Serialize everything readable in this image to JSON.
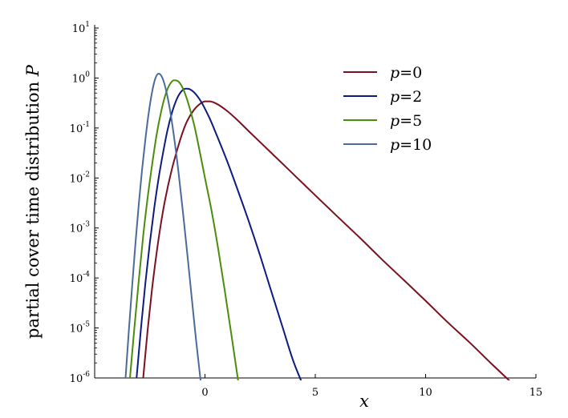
{
  "chart_data": {
    "type": "line",
    "xlabel": "x",
    "ylabel": "partial cover time distribution P",
    "ylabel_prefix": "partial cover time distribution ",
    "ylabel_var": "P",
    "xlim": [
      -5,
      15
    ],
    "ylim": [
      1e-06,
      10
    ],
    "y_scale": "log",
    "grid": false,
    "legend_position": "top-right",
    "x_ticks": [
      0,
      5,
      10,
      15
    ],
    "y_ticks": [
      {
        "base": "10",
        "exp": "1",
        "value": 10
      },
      {
        "base": "10",
        "exp": "0",
        "value": 1
      },
      {
        "base": "10",
        "exp": "-1",
        "value": 0.1
      },
      {
        "base": "10",
        "exp": "-2",
        "value": 0.01
      },
      {
        "base": "10",
        "exp": "-3",
        "value": 0.001
      },
      {
        "base": "10",
        "exp": "-4",
        "value": 0.0001
      },
      {
        "base": "10",
        "exp": "-5",
        "value": 1e-05
      },
      {
        "base": "10",
        "exp": "-6",
        "value": 1e-06
      }
    ],
    "series": [
      {
        "name": "p=0",
        "var": "p",
        "eq": "=0",
        "color": "#7b1020",
        "x": [
          -2.8,
          -2.6,
          -2.4,
          -2.2,
          -2.0,
          -1.8,
          -1.5,
          -1.2,
          -1.0,
          -0.8,
          -0.5,
          -0.2,
          0.0,
          0.2,
          0.5,
          1.0,
          1.5,
          2.0,
          3.0,
          4.0,
          5.0,
          6.0,
          7.0,
          8.0,
          9.0,
          10.0,
          11.0,
          12.0,
          13.0,
          13.9
        ],
        "y": [
          1e-06,
          9e-06,
          6e-05,
          0.0003,
          0.0012,
          0.0038,
          0.015,
          0.045,
          0.085,
          0.14,
          0.23,
          0.31,
          0.34,
          0.34,
          0.31,
          0.22,
          0.14,
          0.085,
          0.032,
          0.012,
          0.0045,
          0.0017,
          0.00065,
          0.00024,
          9.2e-05,
          3.5e-05,
          1.3e-05,
          5.1e-06,
          1.9e-06,
          8e-07
        ]
      },
      {
        "name": "p=2",
        "var": "p",
        "eq": "=2",
        "color": "#0d1a80",
        "x": [
          -3.1,
          -2.9,
          -2.7,
          -2.5,
          -2.3,
          -2.1,
          -1.9,
          -1.7,
          -1.5,
          -1.3,
          -1.1,
          -0.9,
          -0.7,
          -0.5,
          -0.2,
          0.2,
          0.5,
          1.0,
          1.5,
          2.0,
          2.5,
          3.0,
          3.5,
          4.0,
          4.45
        ],
        "y": [
          1e-06,
          1e-05,
          8e-05,
          0.0005,
          0.0025,
          0.01,
          0.032,
          0.09,
          0.2,
          0.36,
          0.52,
          0.61,
          0.6,
          0.52,
          0.35,
          0.16,
          0.078,
          0.022,
          0.0055,
          0.0013,
          0.00028,
          5.5e-05,
          1.1e-05,
          2.2e-06,
          7e-07
        ]
      },
      {
        "name": "p=5",
        "var": "p",
        "eq": "=5",
        "color": "#4a8c0c",
        "x": [
          -3.4,
          -3.2,
          -3.0,
          -2.8,
          -2.6,
          -2.4,
          -2.2,
          -2.0,
          -1.8,
          -1.6,
          -1.4,
          -1.2,
          -1.0,
          -0.8,
          -0.5,
          -0.2,
          0.0,
          0.3,
          0.6,
          0.9,
          1.2,
          1.5,
          1.65
        ],
        "y": [
          1e-06,
          1e-05,
          9e-05,
          0.0007,
          0.004,
          0.018,
          0.07,
          0.2,
          0.45,
          0.74,
          0.9,
          0.85,
          0.62,
          0.36,
          0.12,
          0.028,
          0.01,
          0.0022,
          0.00038,
          5.5e-05,
          7.2e-06,
          9e-07,
          3e-07
        ]
      },
      {
        "name": "p=10",
        "var": "p",
        "eq": "=10",
        "color": "#4a6b9c",
        "x": [
          -3.6,
          -3.45,
          -3.3,
          -3.15,
          -3.0,
          -2.85,
          -2.7,
          -2.55,
          -2.4,
          -2.25,
          -2.1,
          -1.95,
          -1.8,
          -1.6,
          -1.4,
          -1.2,
          -1.0,
          -0.8,
          -0.6,
          -0.4,
          -0.2,
          -0.1
        ],
        "y": [
          1e-06,
          9e-06,
          7e-05,
          0.0005,
          0.003,
          0.015,
          0.06,
          0.2,
          0.52,
          0.98,
          1.22,
          1.05,
          0.66,
          0.25,
          0.065,
          0.013,
          0.0021,
          0.0003,
          4e-05,
          5.5e-06,
          9e-07,
          4e-07
        ]
      }
    ]
  }
}
